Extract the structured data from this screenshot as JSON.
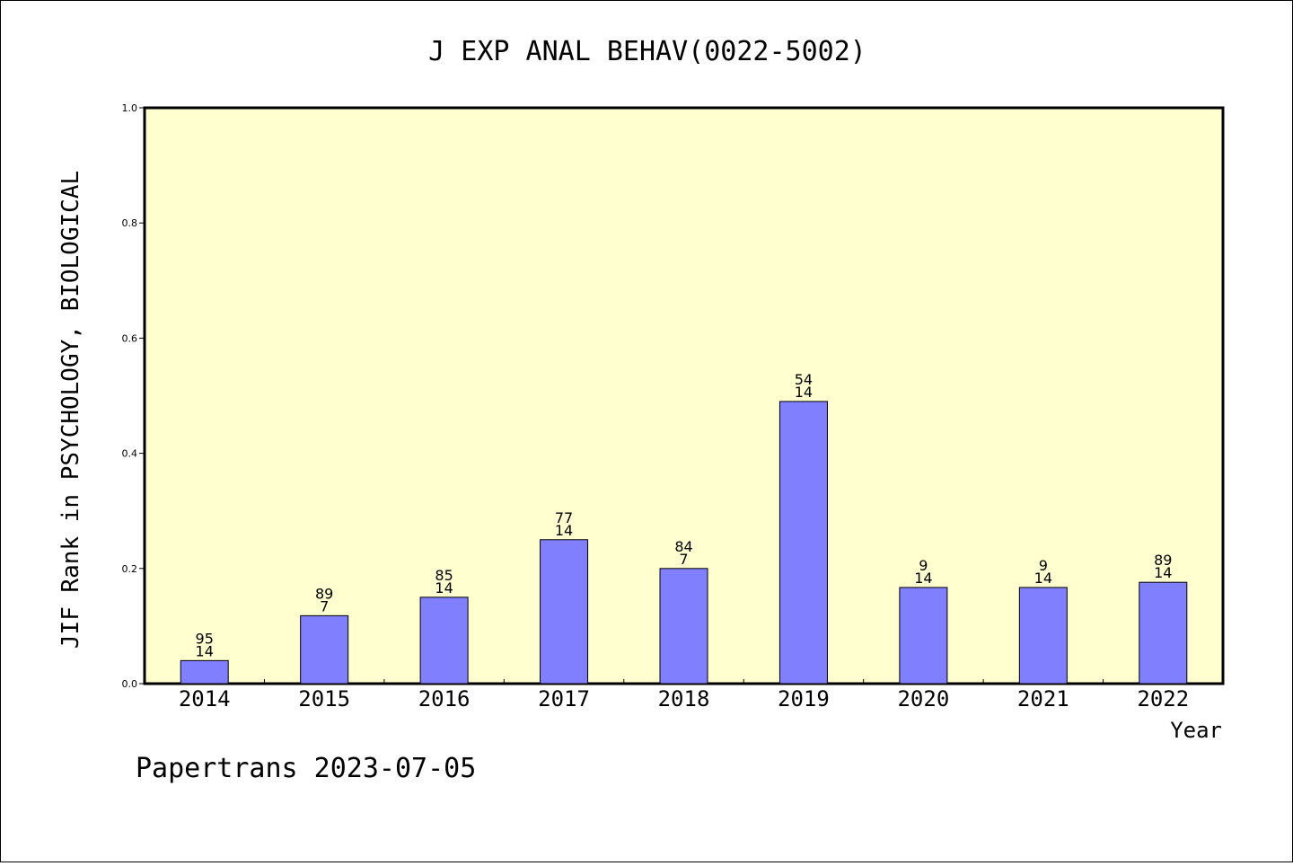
{
  "chart_data": {
    "type": "bar",
    "title": "J EXP ANAL BEHAV(0022-5002)",
    "xlabel": "Year",
    "ylabel": "JIF Rank in PSYCHOLOGY, BIOLOGICAL",
    "ylim": [
      0,
      1.0
    ],
    "yticks": [
      "0.0",
      "0.2",
      "0.4",
      "0.6",
      "0.8",
      "1.0"
    ],
    "categories": [
      "2014",
      "2015",
      "2016",
      "2017",
      "2018",
      "2019",
      "2020",
      "2021",
      "2022"
    ],
    "values": [
      0.04,
      0.118,
      0.15,
      0.25,
      0.2,
      0.49,
      0.167,
      0.167,
      0.176
    ],
    "labels_top": [
      "95",
      "89",
      "85",
      "77",
      "84",
      "54",
      "9",
      "9",
      "89"
    ],
    "labels_bottom": [
      "14",
      "7",
      "14",
      "14",
      "7",
      "14",
      "14",
      "14",
      "14"
    ],
    "grid": false,
    "colors": {
      "plot_bg": "#ffffd0",
      "bar_fill": "#8080ff",
      "bar_stroke": "#000000"
    }
  },
  "footer": {
    "text": "Papertrans 2023-07-05"
  }
}
